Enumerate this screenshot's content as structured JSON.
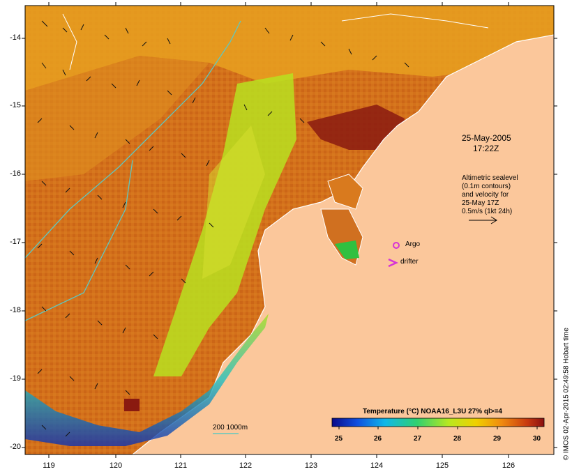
{
  "map": {
    "date_label": "25-May-2005",
    "time_label": "17:22Z",
    "altimetry_lines": [
      "Altimetric sealevel",
      "(0.1m contours)",
      "and velocity for",
      "25-May 17Z",
      "0.5m/s (1kt 24h)"
    ],
    "argo_label": "Argo",
    "drifter_label": "drifter",
    "depth_label": "200  1000m",
    "credit": "© IMOS 02-Apr-2015 02:49:58 Hobart time",
    "colorbar": {
      "title": "Temperature (°C) NOAA16_L3U 27% ql>=4",
      "ticks": [
        "25",
        "26",
        "27",
        "28",
        "29",
        "30"
      ]
    },
    "y_axis": {
      "ticks": [
        "-14",
        "-15",
        "-16",
        "-17",
        "-18",
        "-19",
        "-20"
      ]
    },
    "x_axis": {
      "ticks": [
        "119",
        "120",
        "121",
        "122",
        "123",
        "124",
        "125",
        "126"
      ]
    }
  },
  "colors": {
    "land": "#fbc79b",
    "sea_base": "#d26a18",
    "argo": "#d633d6",
    "drifter": "#d633d6",
    "contour": "#5fc8c0"
  }
}
